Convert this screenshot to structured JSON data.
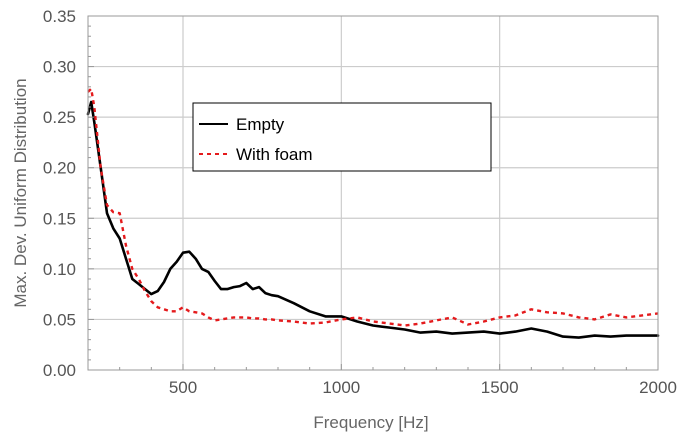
{
  "chart_data": {
    "type": "line",
    "xlabel": "Frequency [Hz]",
    "ylabel": "Max. Dev. Uniform Distribution",
    "xlim": [
      200,
      2000
    ],
    "ylim": [
      0,
      0.35
    ],
    "x_ticks": [
      500,
      1000,
      1500,
      2000
    ],
    "x_tick_labels": [
      "500",
      "1000",
      "1500",
      "2000"
    ],
    "y_ticks": [
      0,
      0.05,
      0.1,
      0.15,
      0.2,
      0.25,
      0.3,
      0.35
    ],
    "y_tick_labels": [
      "0.00",
      "0.05",
      "0.10",
      "0.15",
      "0.20",
      "0.25",
      "0.30",
      "0.35"
    ],
    "grid": true,
    "legend_position": "upper-center",
    "series": [
      {
        "name": "Empty",
        "color": "#000000",
        "style": "solid",
        "x": [
          200,
          210,
          220,
          240,
          260,
          280,
          300,
          320,
          340,
          360,
          380,
          400,
          420,
          440,
          460,
          480,
          500,
          520,
          540,
          560,
          580,
          600,
          620,
          640,
          660,
          680,
          700,
          720,
          740,
          760,
          780,
          800,
          850,
          900,
          950,
          1000,
          1050,
          1100,
          1150,
          1200,
          1250,
          1300,
          1350,
          1400,
          1450,
          1500,
          1550,
          1600,
          1650,
          1700,
          1750,
          1800,
          1850,
          1900,
          1950,
          2000
        ],
        "y": [
          0.253,
          0.265,
          0.245,
          0.2,
          0.155,
          0.14,
          0.13,
          0.11,
          0.09,
          0.085,
          0.08,
          0.075,
          0.078,
          0.087,
          0.1,
          0.107,
          0.116,
          0.117,
          0.11,
          0.1,
          0.097,
          0.088,
          0.08,
          0.08,
          0.082,
          0.083,
          0.086,
          0.08,
          0.082,
          0.076,
          0.074,
          0.073,
          0.066,
          0.058,
          0.053,
          0.053,
          0.048,
          0.044,
          0.042,
          0.04,
          0.037,
          0.038,
          0.036,
          0.037,
          0.038,
          0.036,
          0.038,
          0.041,
          0.038,
          0.033,
          0.032,
          0.034,
          0.033,
          0.034,
          0.034,
          0.034
        ]
      },
      {
        "name": "With foam",
        "color": "#e41a1c",
        "style": "dashed",
        "x": [
          200,
          210,
          220,
          240,
          260,
          280,
          300,
          320,
          340,
          360,
          380,
          400,
          420,
          440,
          460,
          480,
          500,
          520,
          540,
          560,
          580,
          600,
          620,
          640,
          660,
          680,
          700,
          720,
          740,
          760,
          780,
          800,
          850,
          900,
          950,
          1000,
          1050,
          1100,
          1150,
          1200,
          1250,
          1300,
          1350,
          1400,
          1450,
          1500,
          1550,
          1600,
          1650,
          1700,
          1750,
          1800,
          1850,
          1900,
          1950,
          2000
        ],
        "y": [
          0.275,
          0.278,
          0.26,
          0.2,
          0.163,
          0.156,
          0.155,
          0.123,
          0.1,
          0.09,
          0.078,
          0.068,
          0.062,
          0.06,
          0.058,
          0.058,
          0.062,
          0.058,
          0.057,
          0.056,
          0.052,
          0.049,
          0.05,
          0.051,
          0.052,
          0.052,
          0.052,
          0.051,
          0.051,
          0.05,
          0.05,
          0.049,
          0.048,
          0.046,
          0.047,
          0.05,
          0.052,
          0.048,
          0.046,
          0.044,
          0.046,
          0.049,
          0.052,
          0.045,
          0.048,
          0.052,
          0.054,
          0.06,
          0.057,
          0.056,
          0.052,
          0.05,
          0.055,
          0.052,
          0.054,
          0.056
        ]
      }
    ]
  }
}
